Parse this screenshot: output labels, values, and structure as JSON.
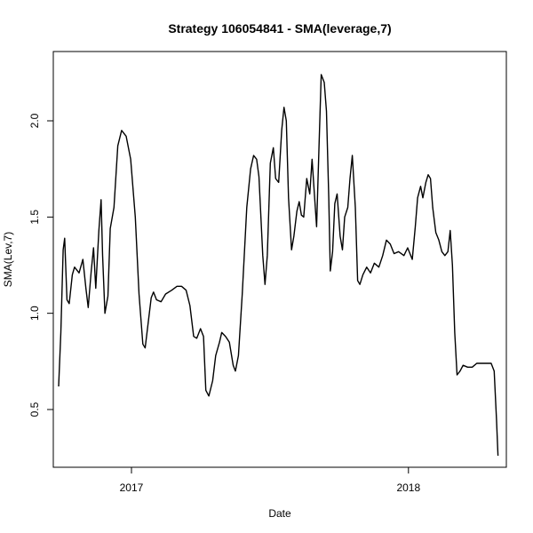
{
  "chart_data": {
    "type": "line",
    "title": "Strategy 106054841 - SMA(leverage,7)",
    "xlabel": "Date",
    "ylabel": "SMA(Lev,7)",
    "x_range": [
      "2016-09-20",
      "2018-05-10"
    ],
    "ylim": [
      0.2,
      2.36
    ],
    "grid": false,
    "legend": "none",
    "x_ticks": [
      {
        "date": "2017-01-01",
        "label": "2017"
      },
      {
        "date": "2018-01-01",
        "label": "2018"
      }
    ],
    "y_ticks": [
      {
        "value": 0.5,
        "label": "0.5"
      },
      {
        "value": 1.0,
        "label": "1.0"
      },
      {
        "value": 1.5,
        "label": "1.5"
      },
      {
        "value": 2.0,
        "label": "2.0"
      }
    ],
    "series": [
      {
        "color": "#000000",
        "points": [
          [
            "2016-09-27",
            0.62
          ],
          [
            "2016-09-30",
            0.9
          ],
          [
            "2016-10-03",
            1.33
          ],
          [
            "2016-10-05",
            1.39
          ],
          [
            "2016-10-08",
            1.07
          ],
          [
            "2016-10-11",
            1.05
          ],
          [
            "2016-10-15",
            1.2
          ],
          [
            "2016-10-18",
            1.24
          ],
          [
            "2016-10-24",
            1.21
          ],
          [
            "2016-10-29",
            1.28
          ],
          [
            "2016-11-02",
            1.13
          ],
          [
            "2016-11-05",
            1.03
          ],
          [
            "2016-11-09",
            1.22
          ],
          [
            "2016-11-12",
            1.34
          ],
          [
            "2016-11-15",
            1.13
          ],
          [
            "2016-11-19",
            1.43
          ],
          [
            "2016-11-22",
            1.59
          ],
          [
            "2016-11-24",
            1.3
          ],
          [
            "2016-11-27",
            1.0
          ],
          [
            "2016-12-01",
            1.09
          ],
          [
            "2016-12-04",
            1.44
          ],
          [
            "2016-12-09",
            1.55
          ],
          [
            "2016-12-14",
            1.87
          ],
          [
            "2016-12-19",
            1.95
          ],
          [
            "2016-12-25",
            1.92
          ],
          [
            "2016-12-31",
            1.8
          ],
          [
            "2017-01-06",
            1.5
          ],
          [
            "2017-01-11",
            1.1
          ],
          [
            "2017-01-16",
            0.84
          ],
          [
            "2017-01-19",
            0.82
          ],
          [
            "2017-01-23",
            0.95
          ],
          [
            "2017-01-27",
            1.08
          ],
          [
            "2017-01-30",
            1.11
          ],
          [
            "2017-02-03",
            1.07
          ],
          [
            "2017-02-09",
            1.06
          ],
          [
            "2017-02-15",
            1.1
          ],
          [
            "2017-02-23",
            1.12
          ],
          [
            "2017-03-02",
            1.14
          ],
          [
            "2017-03-08",
            1.14
          ],
          [
            "2017-03-14",
            1.12
          ],
          [
            "2017-03-19",
            1.04
          ],
          [
            "2017-03-24",
            0.88
          ],
          [
            "2017-03-28",
            0.87
          ],
          [
            "2017-04-02",
            0.92
          ],
          [
            "2017-04-06",
            0.88
          ],
          [
            "2017-04-09",
            0.6
          ],
          [
            "2017-04-13",
            0.57
          ],
          [
            "2017-04-18",
            0.65
          ],
          [
            "2017-04-22",
            0.78
          ],
          [
            "2017-04-27",
            0.85
          ],
          [
            "2017-04-30",
            0.9
          ],
          [
            "2017-05-05",
            0.88
          ],
          [
            "2017-05-10",
            0.85
          ],
          [
            "2017-05-15",
            0.73
          ],
          [
            "2017-05-18",
            0.7
          ],
          [
            "2017-05-22",
            0.78
          ],
          [
            "2017-05-27",
            1.1
          ],
          [
            "2017-06-02",
            1.55
          ],
          [
            "2017-06-07",
            1.75
          ],
          [
            "2017-06-11",
            1.82
          ],
          [
            "2017-06-15",
            1.8
          ],
          [
            "2017-06-18",
            1.71
          ],
          [
            "2017-06-23",
            1.3
          ],
          [
            "2017-06-26",
            1.15
          ],
          [
            "2017-06-29",
            1.3
          ],
          [
            "2017-07-03",
            1.78
          ],
          [
            "2017-07-07",
            1.86
          ],
          [
            "2017-07-10",
            1.7
          ],
          [
            "2017-07-14",
            1.68
          ],
          [
            "2017-07-18",
            1.95
          ],
          [
            "2017-07-21",
            2.07
          ],
          [
            "2017-07-24",
            2.0
          ],
          [
            "2017-07-27",
            1.6
          ],
          [
            "2017-07-31",
            1.33
          ],
          [
            "2017-08-03",
            1.4
          ],
          [
            "2017-08-07",
            1.53
          ],
          [
            "2017-08-10",
            1.58
          ],
          [
            "2017-08-13",
            1.51
          ],
          [
            "2017-08-16",
            1.5
          ],
          [
            "2017-08-20",
            1.7
          ],
          [
            "2017-08-24",
            1.62
          ],
          [
            "2017-08-27",
            1.8
          ],
          [
            "2017-08-30",
            1.62
          ],
          [
            "2017-09-02",
            1.45
          ],
          [
            "2017-09-05",
            1.85
          ],
          [
            "2017-09-08",
            2.24
          ],
          [
            "2017-09-12",
            2.2
          ],
          [
            "2017-09-15",
            2.05
          ],
          [
            "2017-09-18",
            1.6
          ],
          [
            "2017-09-20",
            1.22
          ],
          [
            "2017-09-23",
            1.32
          ],
          [
            "2017-09-26",
            1.57
          ],
          [
            "2017-09-29",
            1.62
          ],
          [
            "2017-10-03",
            1.4
          ],
          [
            "2017-10-06",
            1.33
          ],
          [
            "2017-10-09",
            1.5
          ],
          [
            "2017-10-13",
            1.55
          ],
          [
            "2017-10-16",
            1.7
          ],
          [
            "2017-10-19",
            1.82
          ],
          [
            "2017-10-23",
            1.55
          ],
          [
            "2017-10-26",
            1.17
          ],
          [
            "2017-10-29",
            1.15
          ],
          [
            "2017-11-02",
            1.2
          ],
          [
            "2017-11-07",
            1.24
          ],
          [
            "2017-11-12",
            1.21
          ],
          [
            "2017-11-17",
            1.26
          ],
          [
            "2017-11-23",
            1.24
          ],
          [
            "2017-11-28",
            1.3
          ],
          [
            "2017-12-03",
            1.38
          ],
          [
            "2017-12-08",
            1.36
          ],
          [
            "2017-12-13",
            1.31
          ],
          [
            "2017-12-19",
            1.32
          ],
          [
            "2017-12-26",
            1.3
          ],
          [
            "2017-12-31",
            1.34
          ],
          [
            "2018-01-03",
            1.31
          ],
          [
            "2018-01-06",
            1.28
          ],
          [
            "2018-01-10",
            1.45
          ],
          [
            "2018-01-13",
            1.6
          ],
          [
            "2018-01-17",
            1.66
          ],
          [
            "2018-01-20",
            1.6
          ],
          [
            "2018-01-24",
            1.68
          ],
          [
            "2018-01-27",
            1.72
          ],
          [
            "2018-01-30",
            1.7
          ],
          [
            "2018-02-02",
            1.55
          ],
          [
            "2018-02-06",
            1.42
          ],
          [
            "2018-02-10",
            1.38
          ],
          [
            "2018-02-14",
            1.32
          ],
          [
            "2018-02-18",
            1.3
          ],
          [
            "2018-02-22",
            1.32
          ],
          [
            "2018-02-25",
            1.43
          ],
          [
            "2018-02-28",
            1.25
          ],
          [
            "2018-03-03",
            0.9
          ],
          [
            "2018-03-06",
            0.68
          ],
          [
            "2018-03-10",
            0.7
          ],
          [
            "2018-03-14",
            0.73
          ],
          [
            "2018-03-20",
            0.72
          ],
          [
            "2018-03-26",
            0.72
          ],
          [
            "2018-04-01",
            0.74
          ],
          [
            "2018-04-08",
            0.74
          ],
          [
            "2018-04-14",
            0.74
          ],
          [
            "2018-04-20",
            0.74
          ],
          [
            "2018-04-24",
            0.7
          ],
          [
            "2018-04-27",
            0.45
          ],
          [
            "2018-04-29",
            0.26
          ]
        ]
      }
    ]
  }
}
